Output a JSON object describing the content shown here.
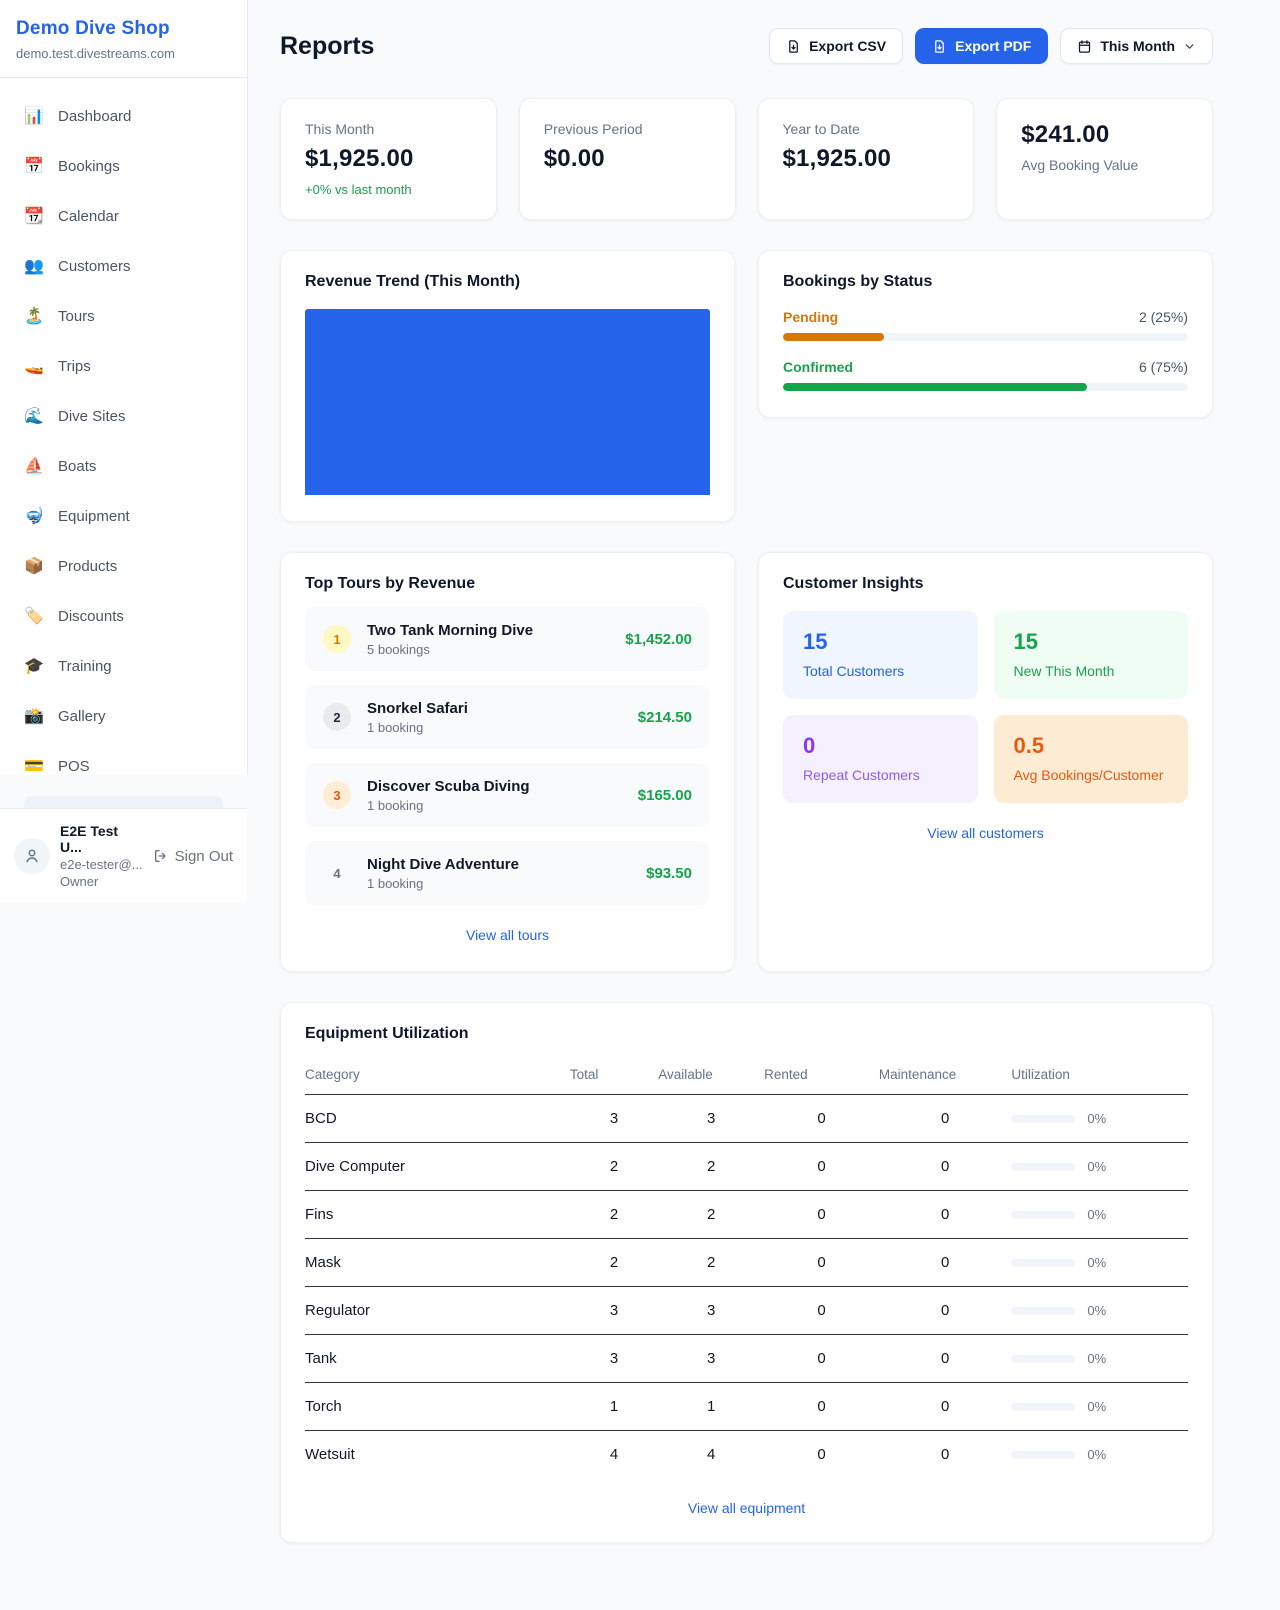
{
  "sidebar": {
    "shop_name": "Demo Dive Shop",
    "shop_domain": "demo.test.divestreams.com",
    "items": [
      {
        "label": "Dashboard",
        "icon": "📊"
      },
      {
        "label": "Bookings",
        "icon": "📅"
      },
      {
        "label": "Calendar",
        "icon": "📆"
      },
      {
        "label": "Customers",
        "icon": "👥"
      },
      {
        "label": "Tours",
        "icon": "🏝️"
      },
      {
        "label": "Trips",
        "icon": "🚤"
      },
      {
        "label": "Dive Sites",
        "icon": "🌊"
      },
      {
        "label": "Boats",
        "icon": "⛵"
      },
      {
        "label": "Equipment",
        "icon": "🤿"
      },
      {
        "label": "Products",
        "icon": "📦"
      },
      {
        "label": "Discounts",
        "icon": "🏷️"
      },
      {
        "label": "Training",
        "icon": "🎓"
      },
      {
        "label": "Gallery",
        "icon": "📸"
      },
      {
        "label": "POS",
        "icon": "💳"
      }
    ],
    "user": {
      "name": "E2E Test U...",
      "email": "e2e-tester@...",
      "role": "Owner",
      "sign_out_label": "Sign Out"
    }
  },
  "header": {
    "title": "Reports",
    "export_csv_label": "Export CSV",
    "export_pdf_label": "Export PDF",
    "period_label": "This Month"
  },
  "stats": [
    {
      "label": "This Month",
      "value": "$1,925.00",
      "delta": "+0% vs last month"
    },
    {
      "label": "Previous Period",
      "value": "$0.00"
    },
    {
      "label": "Year to Date",
      "value": "$1,925.00"
    },
    {
      "label": "Avg Booking Value",
      "value": "$241.00"
    }
  ],
  "revenue_trend": {
    "title": "Revenue Trend (This Month)",
    "bar_color": "#2563eb"
  },
  "bookings_by_status": {
    "title": "Bookings by Status",
    "rows": [
      {
        "label": "Pending",
        "count": "2 (25%)",
        "pct": 25,
        "color": "#d97706"
      },
      {
        "label": "Confirmed",
        "count": "6 (75%)",
        "pct": 75,
        "color": "#16a34a"
      }
    ]
  },
  "top_tours": {
    "title": "Top Tours by Revenue",
    "rows": [
      {
        "rank": "1",
        "name": "Two Tank Morning Dive",
        "bookings": "5 bookings",
        "revenue": "$1,452.00"
      },
      {
        "rank": "2",
        "name": "Snorkel Safari",
        "bookings": "1 booking",
        "revenue": "$214.50"
      },
      {
        "rank": "3",
        "name": "Discover Scuba Diving",
        "bookings": "1 booking",
        "revenue": "$165.00"
      },
      {
        "rank": "4",
        "name": "Night Dive Adventure",
        "bookings": "1 booking",
        "revenue": "$93.50"
      }
    ],
    "view_all_label": "View all tours"
  },
  "customer_insights": {
    "title": "Customer Insights",
    "tiles": [
      {
        "value": "15",
        "label": "Total Customers"
      },
      {
        "value": "15",
        "label": "New This Month"
      },
      {
        "value": "0",
        "label": "Repeat Customers"
      },
      {
        "value": "0.5",
        "label": "Avg Bookings/Customer"
      }
    ],
    "view_all_label": "View all customers"
  },
  "equipment": {
    "title": "Equipment Utilization",
    "columns": [
      "Category",
      "Total",
      "Available",
      "Rented",
      "Maintenance",
      "Utilization"
    ],
    "rows": [
      {
        "category": "BCD",
        "total": "3",
        "available": "3",
        "rented": "0",
        "maintenance": "0",
        "utilization": "0%",
        "utilization_pct": 0
      },
      {
        "category": "Dive Computer",
        "total": "2",
        "available": "2",
        "rented": "0",
        "maintenance": "0",
        "utilization": "0%",
        "utilization_pct": 0
      },
      {
        "category": "Fins",
        "total": "2",
        "available": "2",
        "rented": "0",
        "maintenance": "0",
        "utilization": "0%",
        "utilization_pct": 0
      },
      {
        "category": "Mask",
        "total": "2",
        "available": "2",
        "rented": "0",
        "maintenance": "0",
        "utilization": "0%",
        "utilization_pct": 0
      },
      {
        "category": "Regulator",
        "total": "3",
        "available": "3",
        "rented": "0",
        "maintenance": "0",
        "utilization": "0%",
        "utilization_pct": 0
      },
      {
        "category": "Tank",
        "total": "3",
        "available": "3",
        "rented": "0",
        "maintenance": "0",
        "utilization": "0%",
        "utilization_pct": 0
      },
      {
        "category": "Torch",
        "total": "1",
        "available": "1",
        "rented": "0",
        "maintenance": "0",
        "utilization": "0%",
        "utilization_pct": 0
      },
      {
        "category": "Wetsuit",
        "total": "4",
        "available": "4",
        "rented": "0",
        "maintenance": "0",
        "utilization": "0%",
        "utilization_pct": 0
      }
    ],
    "view_all_label": "View all equipment"
  }
}
